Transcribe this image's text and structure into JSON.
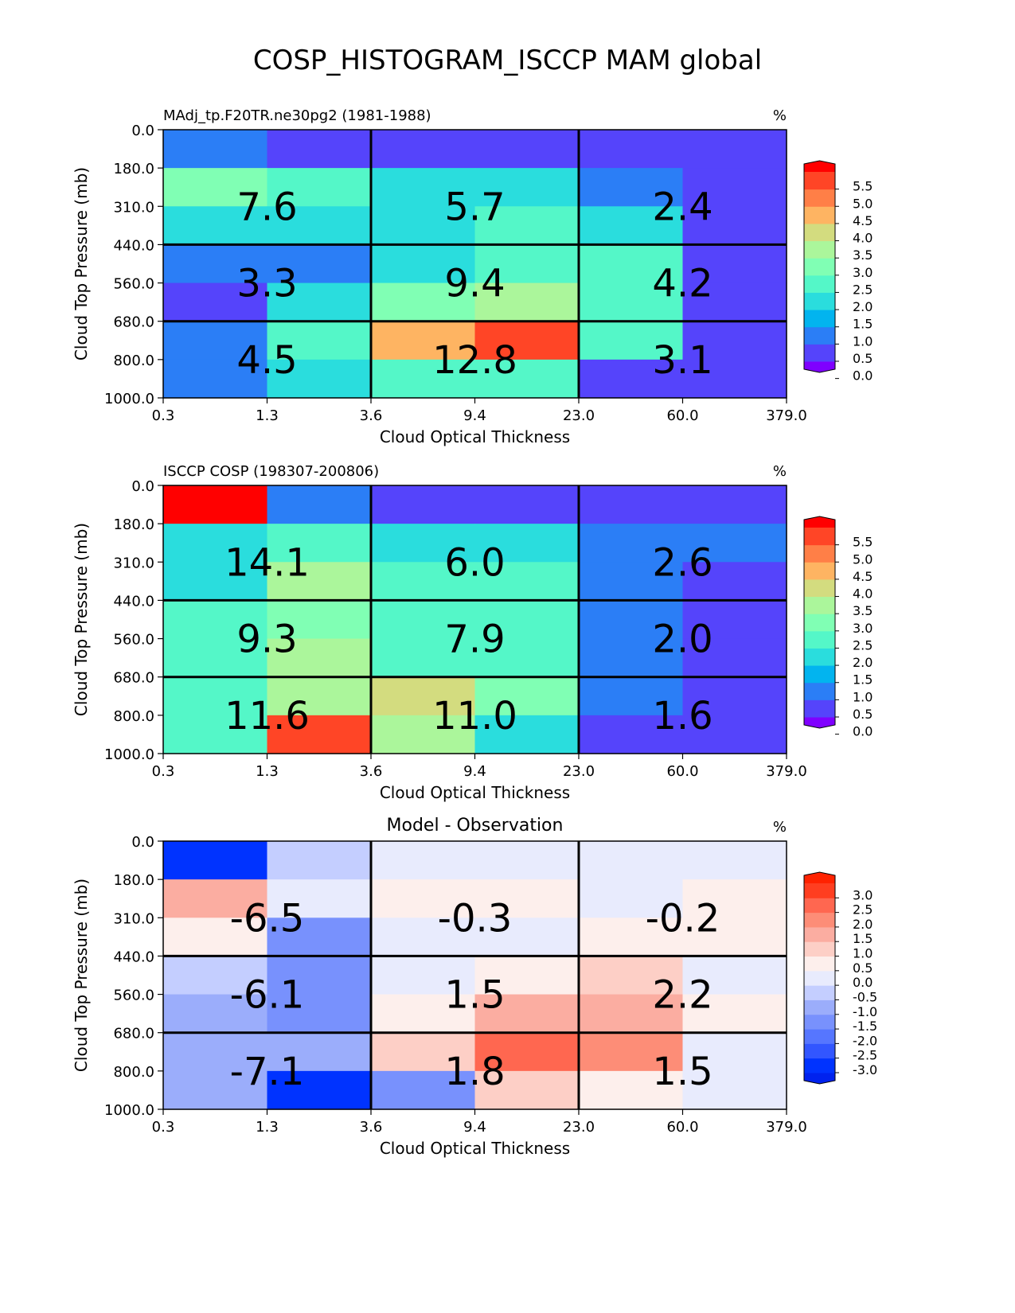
{
  "figure": {
    "title": "COSP_HISTOGRAM_ISCCP MAM global"
  },
  "chart_data": [
    {
      "type": "heatmap",
      "title_left": "MAdj_tp.F20TR.ne30pg2 (1981-1988)",
      "title_center": "",
      "units": "%",
      "xlabel": "Cloud Optical Thickness",
      "ylabel": "Cloud Top Pressure (mb)",
      "x_ticks": [
        "0.3",
        "1.3",
        "3.6",
        "9.4",
        "23.0",
        "60.0",
        "379.0"
      ],
      "y_ticks": [
        "0.0",
        "180.0",
        "310.0",
        "440.0",
        "560.0",
        "680.0",
        "800.0",
        "1000.0"
      ],
      "colorbar_ticks": [
        "5.5",
        "5.0",
        "4.5",
        "4.0",
        "3.5",
        "3.0",
        "2.5",
        "2.0",
        "1.5",
        "1.0",
        "0.5",
        "0.0"
      ],
      "grid": [
        [
          0.8,
          0.3,
          0.2,
          0.2,
          0.2,
          0.2
        ],
        [
          2.9,
          2.1,
          1.6,
          1.6,
          0.8,
          0.3
        ],
        [
          1.6,
          1.6,
          1.6,
          2.1,
          1.6,
          0.3
        ],
        [
          0.8,
          0.8,
          1.6,
          2.1,
          2.1,
          0.3
        ],
        [
          0.3,
          1.6,
          2.9,
          3.4,
          2.4,
          0.3
        ],
        [
          0.8,
          2.4,
          4.4,
          5.2,
          2.4,
          0.3
        ],
        [
          0.8,
          1.6,
          2.1,
          2.1,
          0.3,
          0.3
        ]
      ],
      "box_values": [
        [
          "7.6",
          "5.7",
          "2.4"
        ],
        [
          "3.3",
          "9.4",
          "4.2"
        ],
        [
          "4.5",
          "12.8",
          "3.1"
        ]
      ]
    },
    {
      "type": "heatmap",
      "title_left": "ISCCP COSP (198307-200806)",
      "title_center": "",
      "units": "%",
      "xlabel": "Cloud Optical Thickness",
      "ylabel": "Cloud Top Pressure (mb)",
      "x_ticks": [
        "0.3",
        "1.3",
        "3.6",
        "9.4",
        "23.0",
        "60.0",
        "379.0"
      ],
      "y_ticks": [
        "0.0",
        "180.0",
        "310.0",
        "440.0",
        "560.0",
        "680.0",
        "800.0",
        "1000.0"
      ],
      "colorbar_ticks": [
        "5.5",
        "5.0",
        "4.5",
        "4.0",
        "3.5",
        "3.0",
        "2.5",
        "2.0",
        "1.5",
        "1.0",
        "0.5",
        "0.0"
      ],
      "grid": [
        [
          6.5,
          0.8,
          0.3,
          0.3,
          0.3,
          0.3
        ],
        [
          1.6,
          2.4,
          1.6,
          1.6,
          0.8,
          0.8
        ],
        [
          1.6,
          3.4,
          2.1,
          2.1,
          0.8,
          0.3
        ],
        [
          2.1,
          2.9,
          2.1,
          2.1,
          0.8,
          0.3
        ],
        [
          2.1,
          3.4,
          2.4,
          2.4,
          0.8,
          0.3
        ],
        [
          2.1,
          3.4,
          3.9,
          2.9,
          0.8,
          0.3
        ],
        [
          2.1,
          5.2,
          3.4,
          1.6,
          0.3,
          0.3
        ]
      ],
      "box_values": [
        [
          "14.1",
          "6.0",
          "2.6"
        ],
        [
          "9.3",
          "7.9",
          "2.0"
        ],
        [
          "11.6",
          "11.0",
          "1.6"
        ]
      ]
    },
    {
      "type": "heatmap",
      "title_left": "",
      "title_center": "Model - Observation",
      "units": "%",
      "xlabel": "Cloud Optical Thickness",
      "ylabel": "Cloud Top Pressure (mb)",
      "x_ticks": [
        "0.3",
        "1.3",
        "3.6",
        "9.4",
        "23.0",
        "60.0",
        "379.0"
      ],
      "y_ticks": [
        "0.0",
        "180.0",
        "310.0",
        "440.0",
        "560.0",
        "680.0",
        "800.0",
        "1000.0"
      ],
      "colorbar_ticks": [
        "3.0",
        "2.5",
        "2.0",
        "1.5",
        "1.0",
        "0.5",
        "0.0",
        "-0.5",
        "-1.0",
        "-1.5",
        "-2.0",
        "-2.5",
        "-3.0"
      ],
      "grid": [
        [
          -3.2,
          -0.75,
          -0.25,
          -0.25,
          -0.25,
          -0.25
        ],
        [
          1.25,
          -0.25,
          0.25,
          0.25,
          -0.25,
          0.25
        ],
        [
          0.25,
          -1.75,
          -0.25,
          -0.25,
          0.25,
          0.25
        ],
        [
          -0.75,
          -1.75,
          -0.25,
          0.25,
          0.75,
          -0.25
        ],
        [
          -1.25,
          -1.75,
          0.25,
          1.25,
          1.25,
          0.25
        ],
        [
          -1.25,
          -1.25,
          0.75,
          2.25,
          1.75,
          -0.25
        ],
        [
          -1.25,
          -3.2,
          -1.75,
          0.75,
          0.25,
          -0.25
        ]
      ],
      "box_values": [
        [
          "-6.5",
          "-0.3",
          "-0.2"
        ],
        [
          "-6.1",
          "1.5",
          "2.2"
        ],
        [
          "-7.1",
          "1.8",
          "1.5"
        ]
      ]
    }
  ]
}
